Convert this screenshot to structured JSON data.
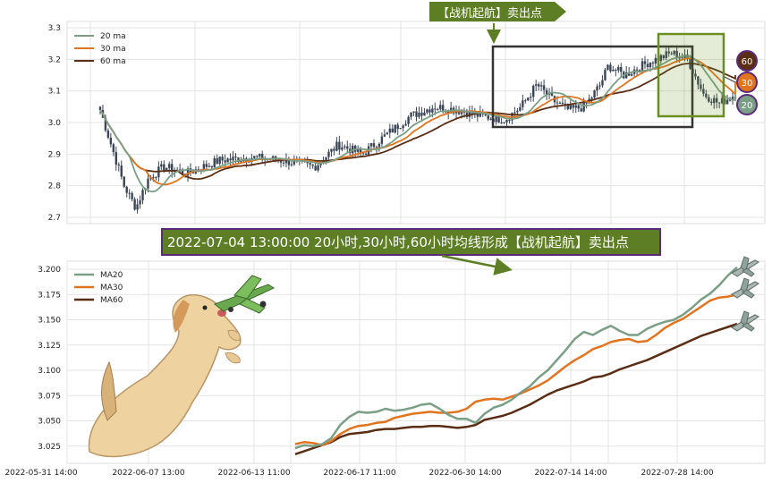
{
  "colors": {
    "ma20": "#7a9e86",
    "ma30": "#e0741f",
    "ma60": "#5a2e14",
    "candle": "#3b4556",
    "banner_fill": "#5d7e24",
    "banner_border": "#5b2a7a",
    "box": "#333333",
    "highlight_box": "#6b8e23"
  },
  "top_annotation": "【战机起航】卖出点",
  "bottom_annotation": "2022-07-04 13:00:00 20小时,30小时,60小时均线形成【战机起航】卖出点",
  "badges": [
    "60",
    "30",
    "20"
  ],
  "icons": [
    "dog-illustration-icon",
    "airplane-icon"
  ],
  "chart_data": [
    {
      "type": "candlestick",
      "ylim": [
        2.68,
        3.32
      ],
      "yticks": [
        "2.7",
        "2.8",
        "2.9",
        "3.0",
        "3.1",
        "3.2",
        "3.3"
      ],
      "legend": [
        "20 ma",
        "30 ma",
        "60 ma"
      ],
      "legend_position": "top-left",
      "grid": true,
      "ma_end_values": {
        "ma20": 3.09,
        "ma30": 3.13,
        "ma60": 3.15
      },
      "price_path": [
        [
          0,
          3.04
        ],
        [
          3,
          2.92
        ],
        [
          6,
          2.8
        ],
        [
          9,
          2.73
        ],
        [
          12,
          2.82
        ],
        [
          16,
          2.86
        ],
        [
          22,
          2.84
        ],
        [
          30,
          2.88
        ],
        [
          38,
          2.89
        ],
        [
          46,
          2.88
        ],
        [
          54,
          2.86
        ],
        [
          60,
          2.93
        ],
        [
          66,
          2.9
        ],
        [
          72,
          2.96
        ],
        [
          78,
          3.02
        ],
        [
          84,
          3.05
        ],
        [
          90,
          3.04
        ],
        [
          96,
          3.02
        ],
        [
          102,
          3.01
        ],
        [
          106,
          3.05
        ],
        [
          110,
          3.12
        ],
        [
          114,
          3.07
        ],
        [
          118,
          3.04
        ],
        [
          122,
          3.05
        ],
        [
          126,
          3.12
        ],
        [
          128,
          3.18
        ],
        [
          132,
          3.15
        ],
        [
          138,
          3.19
        ],
        [
          144,
          3.22
        ],
        [
          148,
          3.2
        ],
        [
          152,
          3.09
        ],
        [
          156,
          3.06
        ],
        [
          160,
          3.09
        ]
      ]
    },
    {
      "type": "line",
      "ylim": [
        3.008,
        3.208
      ],
      "yticks": [
        "3.025",
        "3.050",
        "3.075",
        "3.100",
        "3.125",
        "3.150",
        "3.175",
        "3.200"
      ],
      "xticks": [
        "2022-05-31 14:00",
        "2022-06-07 13:00",
        "2022-06-13 11:00",
        "2022-06-17 11:00",
        "2022-06-30 14:00",
        "2022-07-14 14:00",
        "2022-07-28 14:00"
      ],
      "grid": true,
      "legend_position": "top-left",
      "series": [
        {
          "name": "MA20",
          "values": [
            3.023,
            3.026,
            3.025,
            3.027,
            3.033,
            3.046,
            3.054,
            3.059,
            3.058,
            3.059,
            3.062,
            3.06,
            3.061,
            3.063,
            3.066,
            3.067,
            3.062,
            3.056,
            3.052,
            3.052,
            3.048,
            3.057,
            3.063,
            3.066,
            3.071,
            3.078,
            3.084,
            3.093,
            3.1,
            3.11,
            3.12,
            3.131,
            3.138,
            3.135,
            3.14,
            3.144,
            3.139,
            3.135,
            3.135,
            3.141,
            3.145,
            3.148,
            3.15,
            3.155,
            3.162,
            3.17,
            3.176,
            3.184,
            3.194,
            3.202
          ]
        },
        {
          "name": "MA30",
          "values": [
            3.027,
            3.029,
            3.028,
            3.026,
            3.03,
            3.037,
            3.042,
            3.045,
            3.046,
            3.048,
            3.049,
            3.053,
            3.055,
            3.057,
            3.058,
            3.059,
            3.058,
            3.058,
            3.059,
            3.062,
            3.069,
            3.071,
            3.072,
            3.071,
            3.074,
            3.077,
            3.081,
            3.085,
            3.09,
            3.097,
            3.104,
            3.11,
            3.115,
            3.121,
            3.124,
            3.128,
            3.13,
            3.131,
            3.128,
            3.129,
            3.135,
            3.142,
            3.147,
            3.151,
            3.157,
            3.163,
            3.169,
            3.172,
            3.173,
            3.175
          ]
        },
        {
          "name": "MA60",
          "values": [
            3.017,
            3.02,
            3.023,
            3.026,
            3.029,
            3.034,
            3.037,
            3.038,
            3.039,
            3.041,
            3.042,
            3.042,
            3.043,
            3.044,
            3.044,
            3.045,
            3.045,
            3.044,
            3.043,
            3.044,
            3.046,
            3.051,
            3.053,
            3.055,
            3.058,
            3.062,
            3.066,
            3.071,
            3.076,
            3.08,
            3.083,
            3.086,
            3.089,
            3.093,
            3.094,
            3.097,
            3.101,
            3.104,
            3.107,
            3.11,
            3.114,
            3.118,
            3.122,
            3.126,
            3.13,
            3.134,
            3.137,
            3.14,
            3.143,
            3.146
          ]
        }
      ]
    }
  ]
}
